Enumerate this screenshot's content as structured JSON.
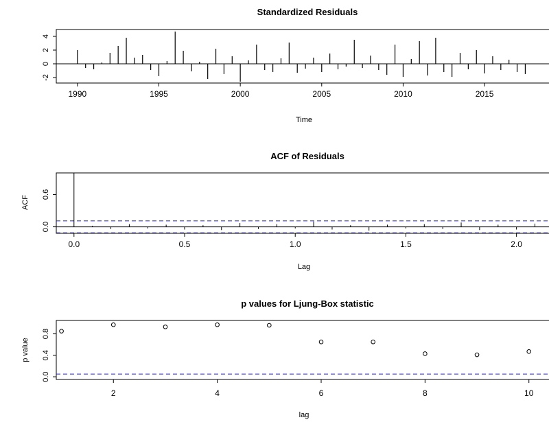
{
  "chart_data": [
    {
      "type": "bar",
      "title": "Standardized Residuals",
      "xlabel": "Time",
      "ylabel": "",
      "xlim": [
        1988.7,
        2019.0
      ],
      "ylim": [
        -2.8,
        5.0
      ],
      "x_ticks": [
        1990,
        1995,
        2000,
        2005,
        2010,
        2015
      ],
      "y_ticks": [
        -2,
        0,
        2,
        4
      ],
      "reference_line": 0,
      "x": [
        1990.0,
        1990.5,
        1991.0,
        1991.5,
        1992.0,
        1992.5,
        1993.0,
        1993.5,
        1994.0,
        1994.5,
        1995.0,
        1995.5,
        1996.0,
        1996.5,
        1997.0,
        1997.5,
        1998.0,
        1998.5,
        1999.0,
        1999.5,
        2000.0,
        2000.5,
        2001.0,
        2001.5,
        2002.0,
        2002.5,
        2003.0,
        2003.5,
        2004.0,
        2004.5,
        2005.0,
        2005.5,
        2006.0,
        2006.5,
        2007.0,
        2007.5,
        2008.0,
        2008.5,
        2009.0,
        2009.5,
        2010.0,
        2010.5,
        2011.0,
        2011.5,
        2012.0,
        2012.5,
        2013.0,
        2013.5,
        2014.0,
        2014.5,
        2015.0,
        2015.5,
        2016.0,
        2016.5,
        2017.0,
        2017.5
      ],
      "values": [
        2.0,
        -0.6,
        -0.8,
        0.2,
        1.6,
        2.6,
        3.8,
        0.9,
        1.3,
        -0.9,
        -1.8,
        0.4,
        4.7,
        1.9,
        -1.1,
        0.3,
        -2.2,
        2.2,
        -1.5,
        1.1,
        -2.6,
        0.5,
        2.8,
        -0.9,
        -1.2,
        0.8,
        3.1,
        -1.3,
        -0.7,
        0.9,
        -1.2,
        1.5,
        -0.8,
        -0.4,
        3.5,
        -0.6,
        1.2,
        -0.9,
        -1.6,
        2.8,
        -1.9,
        0.7,
        3.3,
        -1.7,
        3.8,
        -1.2,
        -1.9,
        1.6,
        -0.8,
        2.0,
        -1.4,
        1.1,
        -0.9,
        0.6,
        -1.2,
        -1.5
      ]
    },
    {
      "type": "bar",
      "title": "ACF of Residuals",
      "xlabel": "Lag",
      "ylabel": "ACF",
      "xlim": [
        -0.08,
        2.15
      ],
      "ylim": [
        -0.12,
        1.0
      ],
      "x_ticks": [
        "0.0",
        "0.5",
        "1.0",
        "1.5",
        "2.0"
      ],
      "y_ticks": [
        "0.0",
        "0.6"
      ],
      "confidence_bounds": [
        0.11,
        -0.11
      ],
      "x": [
        0.0,
        0.0833,
        0.1667,
        0.25,
        0.3333,
        0.4167,
        0.5,
        0.5833,
        0.6667,
        0.75,
        0.8333,
        0.9167,
        1.0,
        1.0833,
        1.1667,
        1.25,
        1.3333,
        1.4167,
        1.5,
        1.5833,
        1.6667,
        1.75,
        1.8333,
        1.9167,
        2.0,
        2.0833
      ],
      "values": [
        1.0,
        0.02,
        -0.04,
        0.05,
        -0.03,
        0.04,
        -0.05,
        0.03,
        -0.06,
        0.07,
        -0.04,
        0.05,
        -0.03,
        0.1,
        -0.05,
        0.03,
        -0.07,
        0.04,
        -0.03,
        0.05,
        -0.04,
        0.08,
        -0.06,
        0.04,
        -0.05,
        0.06
      ]
    },
    {
      "type": "scatter",
      "title": "p values for Ljung-Box statistic",
      "xlabel": "lag",
      "ylabel": "p value",
      "xlim": [
        0.9,
        10.4
      ],
      "ylim": [
        -0.05,
        1.05
      ],
      "x_ticks": [
        2,
        4,
        6,
        8,
        10
      ],
      "y_ticks": [
        "0.0",
        "0.4",
        "0.8"
      ],
      "reference_line": 0.05,
      "x": [
        1,
        2,
        3,
        4,
        5,
        6,
        7,
        8,
        9,
        10
      ],
      "values": [
        0.85,
        0.97,
        0.93,
        0.97,
        0.96,
        0.65,
        0.65,
        0.43,
        0.41,
        0.47
      ]
    }
  ]
}
